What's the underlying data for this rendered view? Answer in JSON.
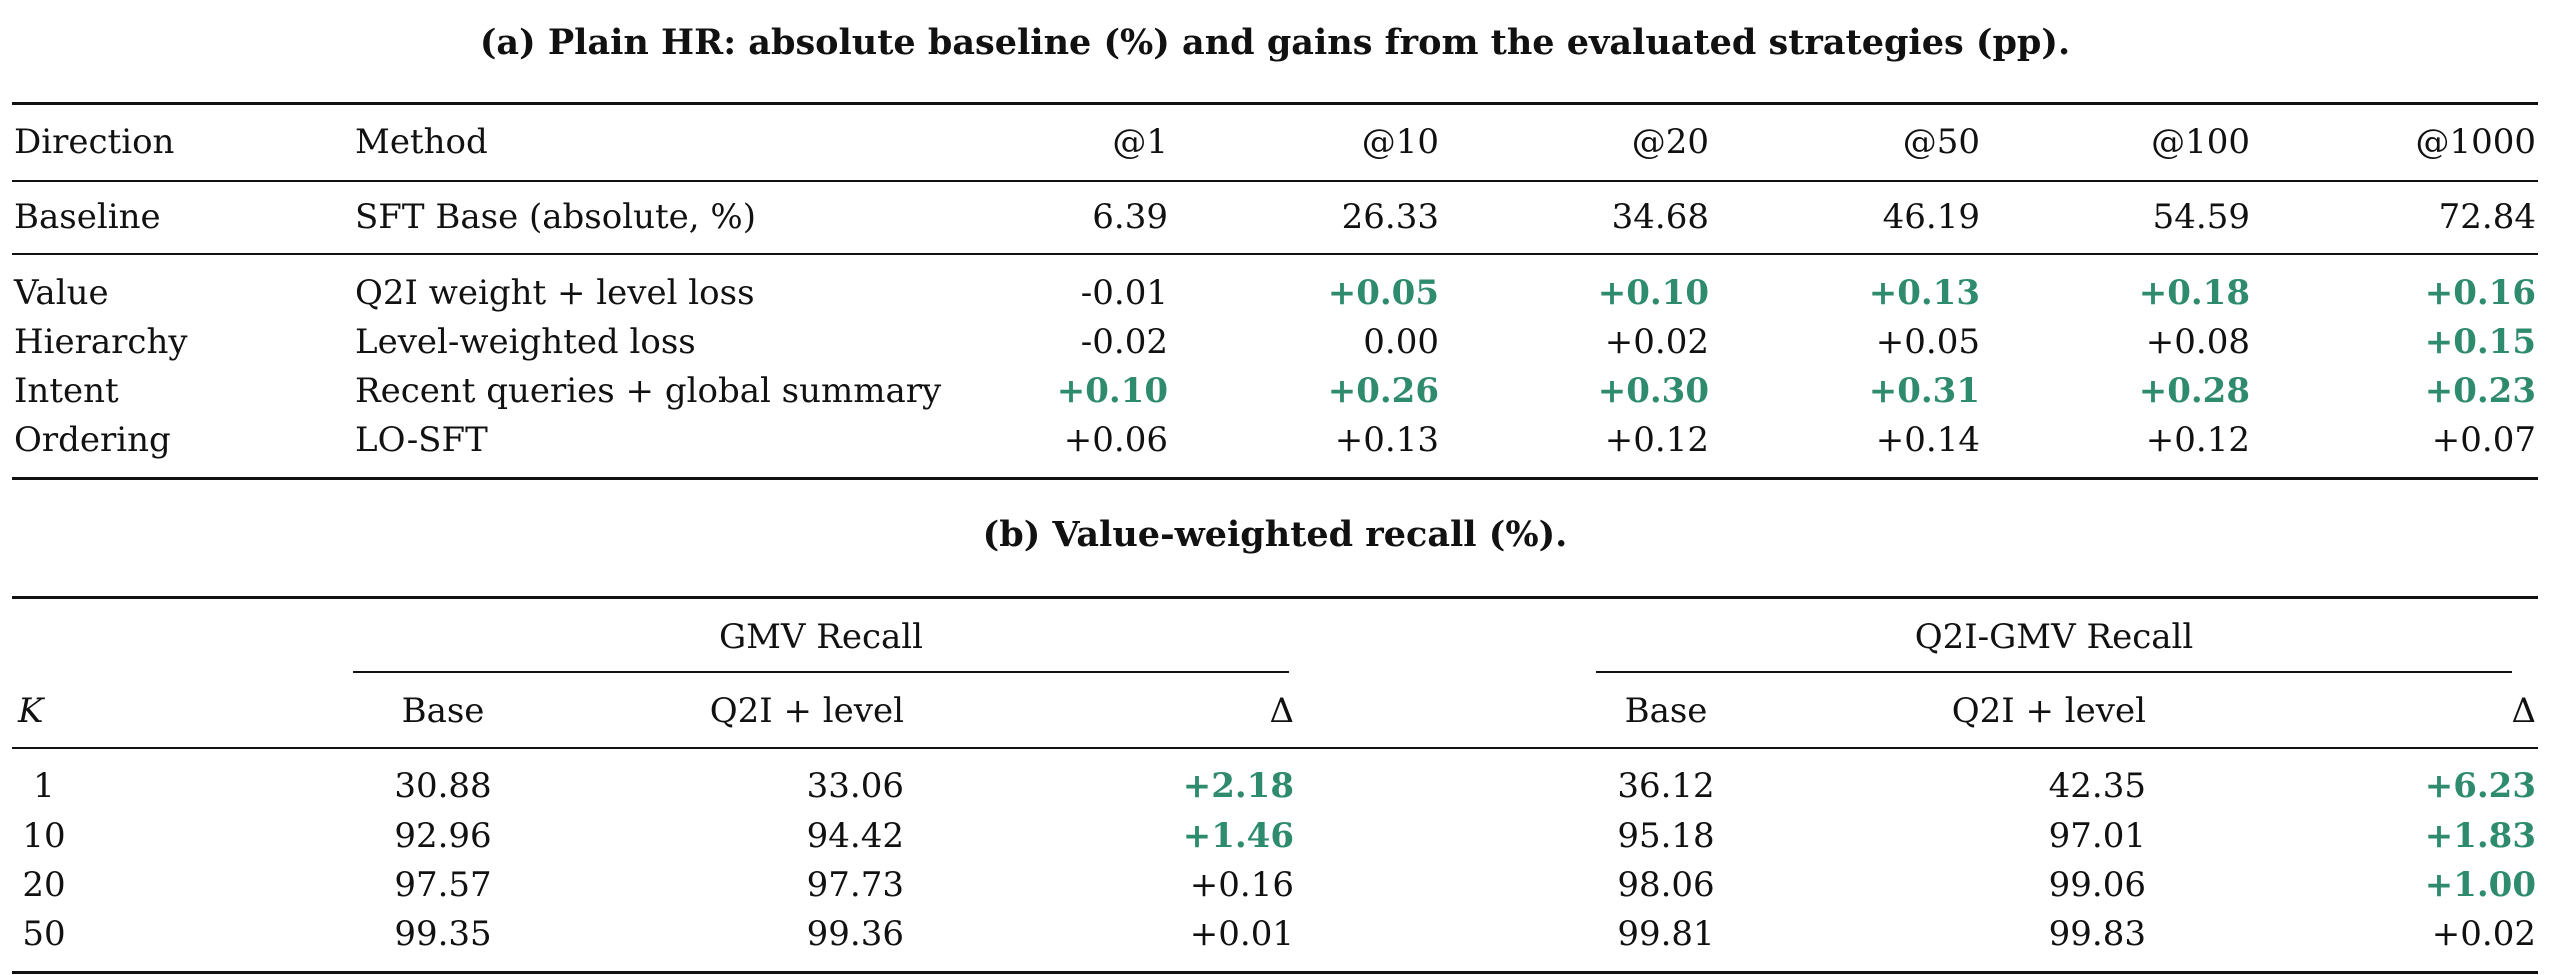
{
  "table_a": {
    "caption": "(a) Plain HR: absolute baseline (%) and gains from the evaluated strategies (pp).",
    "headers": [
      "Direction",
      "Method",
      "@1",
      "@10",
      "@20",
      "@50",
      "@100",
      "@1000"
    ],
    "baseline_row": {
      "direction": "Baseline",
      "method": "SFT Base (absolute, %)",
      "values": [
        "6.39",
        "26.33",
        "34.68",
        "46.19",
        "54.59",
        "72.84"
      ]
    },
    "rows": [
      {
        "direction": "Value",
        "method": "Q2I weight + level loss",
        "values": [
          "-0.01",
          "+0.05",
          "+0.10",
          "+0.13",
          "+0.18",
          "+0.16"
        ],
        "bold": [
          false,
          true,
          true,
          true,
          true,
          true
        ]
      },
      {
        "direction": "Hierarchy",
        "method": "Level-weighted loss",
        "values": [
          "-0.02",
          "0.00",
          "+0.02",
          "+0.05",
          "+0.08",
          "+0.15"
        ],
        "bold": [
          false,
          false,
          false,
          false,
          false,
          true
        ]
      },
      {
        "direction": "Intent",
        "method": "Recent queries + global summary",
        "values": [
          "+0.10",
          "+0.26",
          "+0.30",
          "+0.31",
          "+0.28",
          "+0.23"
        ],
        "bold": [
          true,
          true,
          true,
          true,
          true,
          true
        ]
      },
      {
        "direction": "Ordering",
        "method": "LO-SFT",
        "values": [
          "+0.06",
          "+0.13",
          "+0.12",
          "+0.14",
          "+0.12",
          "+0.07"
        ],
        "bold": [
          false,
          false,
          false,
          false,
          false,
          false
        ]
      }
    ]
  },
  "table_b": {
    "caption": "(b) Value-weighted recall (%).",
    "group_headers": [
      "GMV Recall",
      "Q2I-GMV Recall"
    ],
    "k_header": "K",
    "sub_headers": [
      "Base",
      "Q2I + level",
      "Δ",
      "Base",
      "Q2I + level",
      "Δ"
    ],
    "rows": [
      {
        "k": "1",
        "values": [
          "30.88",
          "33.06",
          "+2.18",
          "36.12",
          "42.35",
          "+6.23"
        ],
        "bold": [
          false,
          false,
          true,
          false,
          false,
          true
        ]
      },
      {
        "k": "10",
        "values": [
          "92.96",
          "94.42",
          "+1.46",
          "95.18",
          "97.01",
          "+1.83"
        ],
        "bold": [
          false,
          false,
          true,
          false,
          false,
          true
        ]
      },
      {
        "k": "20",
        "values": [
          "97.57",
          "97.73",
          "+0.16",
          "98.06",
          "99.06",
          "+1.00"
        ],
        "bold": [
          false,
          false,
          false,
          false,
          false,
          true
        ]
      },
      {
        "k": "50",
        "values": [
          "99.35",
          "99.36",
          "+0.01",
          "99.81",
          "99.83",
          "+0.02"
        ],
        "bold": [
          false,
          false,
          false,
          false,
          false,
          false
        ]
      }
    ],
    "colors": {
      "positive": "#2e8b6e"
    }
  }
}
